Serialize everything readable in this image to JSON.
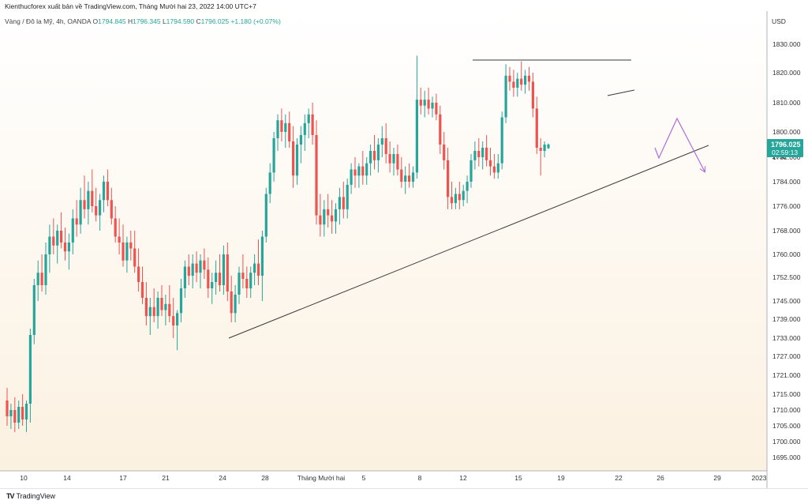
{
  "header": {
    "title": "Kienthucforex xuất bản về TradingView.com, Tháng Mười hai 23, 2022 14:00 UTC+7"
  },
  "symbol_info": {
    "name": "Vàng / Đô la Mỹ, 4h, OANDA",
    "o_label": "O",
    "o_value": "1794.845",
    "h_label": "H",
    "h_value": "1796.345",
    "l_label": "L",
    "l_value": "1794.590",
    "c_label": "C",
    "c_value": "1796.025",
    "change": "+1.180 (+0.07%)"
  },
  "price_axis": {
    "currency": "USD",
    "current_price": "1796.025",
    "countdown": "02:59:13",
    "partial_label": "1792"
  },
  "branding": {
    "logo_mark": "TV",
    "name": "TradingView"
  },
  "colors": {
    "up": "#26a69a",
    "down": "#ef5350",
    "projection": "#b06ad8",
    "trendline": "#3a3a3a",
    "price_tag": "#26a69a"
  },
  "chart_data": {
    "type": "candlestick",
    "interval": "4h",
    "y_ticks": [
      "1830.000",
      "1820.000",
      "1810.000",
      "1800.000",
      "1792.000",
      "1784.000",
      "1776.000",
      "1768.000",
      "1760.000",
      "1752.500",
      "1745.000",
      "1739.000",
      "1733.000",
      "1727.000",
      "1721.000",
      "1715.000",
      "1710.000",
      "1705.000",
      "1700.000",
      "1695.000"
    ],
    "x_ticks": [
      "10",
      "14",
      "17",
      "21",
      "24",
      "28",
      "Tháng Mười hai",
      "5",
      "8",
      "12",
      "15",
      "19",
      "22",
      "26",
      "29",
      "2023"
    ],
    "candles": [
      {
        "o": 1713,
        "h": 1717,
        "l": 1705,
        "c": 1708
      },
      {
        "o": 1708,
        "h": 1712,
        "l": 1704,
        "c": 1710
      },
      {
        "o": 1710,
        "h": 1714,
        "l": 1703,
        "c": 1706
      },
      {
        "o": 1706,
        "h": 1713,
        "l": 1704,
        "c": 1711
      },
      {
        "o": 1711,
        "h": 1715,
        "l": 1705,
        "c": 1707
      },
      {
        "o": 1707,
        "h": 1713,
        "l": 1703,
        "c": 1712
      },
      {
        "o": 1712,
        "h": 1736,
        "l": 1706,
        "c": 1734
      },
      {
        "o": 1734,
        "h": 1752,
        "l": 1731,
        "c": 1750
      },
      {
        "o": 1750,
        "h": 1758,
        "l": 1745,
        "c": 1754
      },
      {
        "o": 1754,
        "h": 1760,
        "l": 1748,
        "c": 1750
      },
      {
        "o": 1750,
        "h": 1764,
        "l": 1747,
        "c": 1760
      },
      {
        "o": 1760,
        "h": 1770,
        "l": 1754,
        "c": 1766
      },
      {
        "o": 1766,
        "h": 1772,
        "l": 1760,
        "c": 1763
      },
      {
        "o": 1763,
        "h": 1770,
        "l": 1757,
        "c": 1768
      },
      {
        "o": 1768,
        "h": 1774,
        "l": 1762,
        "c": 1764
      },
      {
        "o": 1764,
        "h": 1769,
        "l": 1758,
        "c": 1761
      },
      {
        "o": 1761,
        "h": 1767,
        "l": 1755,
        "c": 1764
      },
      {
        "o": 1764,
        "h": 1775,
        "l": 1760,
        "c": 1772
      },
      {
        "o": 1772,
        "h": 1778,
        "l": 1766,
        "c": 1770
      },
      {
        "o": 1770,
        "h": 1782,
        "l": 1767,
        "c": 1778
      },
      {
        "o": 1778,
        "h": 1786,
        "l": 1772,
        "c": 1775
      },
      {
        "o": 1775,
        "h": 1784,
        "l": 1770,
        "c": 1781
      },
      {
        "o": 1781,
        "h": 1788,
        "l": 1774,
        "c": 1776
      },
      {
        "o": 1776,
        "h": 1782,
        "l": 1771,
        "c": 1773
      },
      {
        "o": 1773,
        "h": 1780,
        "l": 1768,
        "c": 1778
      },
      {
        "o": 1778,
        "h": 1786,
        "l": 1774,
        "c": 1784
      },
      {
        "o": 1784,
        "h": 1788,
        "l": 1776,
        "c": 1778
      },
      {
        "o": 1778,
        "h": 1782,
        "l": 1770,
        "c": 1772
      },
      {
        "o": 1772,
        "h": 1776,
        "l": 1764,
        "c": 1766
      },
      {
        "o": 1766,
        "h": 1772,
        "l": 1760,
        "c": 1764
      },
      {
        "o": 1764,
        "h": 1770,
        "l": 1756,
        "c": 1758
      },
      {
        "o": 1758,
        "h": 1766,
        "l": 1754,
        "c": 1764
      },
      {
        "o": 1764,
        "h": 1768,
        "l": 1758,
        "c": 1762
      },
      {
        "o": 1762,
        "h": 1768,
        "l": 1754,
        "c": 1756
      },
      {
        "o": 1756,
        "h": 1762,
        "l": 1748,
        "c": 1751
      },
      {
        "o": 1751,
        "h": 1756,
        "l": 1744,
        "c": 1746
      },
      {
        "o": 1746,
        "h": 1751,
        "l": 1737,
        "c": 1740
      },
      {
        "o": 1740,
        "h": 1746,
        "l": 1734,
        "c": 1743
      },
      {
        "o": 1743,
        "h": 1749,
        "l": 1738,
        "c": 1740
      },
      {
        "o": 1740,
        "h": 1748,
        "l": 1736,
        "c": 1746
      },
      {
        "o": 1746,
        "h": 1750,
        "l": 1740,
        "c": 1742
      },
      {
        "o": 1742,
        "h": 1747,
        "l": 1737,
        "c": 1744
      },
      {
        "o": 1744,
        "h": 1750,
        "l": 1738,
        "c": 1740
      },
      {
        "o": 1740,
        "h": 1746,
        "l": 1733,
        "c": 1737
      },
      {
        "o": 1737,
        "h": 1742,
        "l": 1729,
        "c": 1741
      },
      {
        "o": 1741,
        "h": 1752,
        "l": 1738,
        "c": 1749
      },
      {
        "o": 1749,
        "h": 1758,
        "l": 1746,
        "c": 1756
      },
      {
        "o": 1756,
        "h": 1760,
        "l": 1750,
        "c": 1753
      },
      {
        "o": 1753,
        "h": 1760,
        "l": 1749,
        "c": 1757
      },
      {
        "o": 1757,
        "h": 1761,
        "l": 1751,
        "c": 1754
      },
      {
        "o": 1754,
        "h": 1760,
        "l": 1749,
        "c": 1758
      },
      {
        "o": 1758,
        "h": 1762,
        "l": 1752,
        "c": 1755
      },
      {
        "o": 1755,
        "h": 1759,
        "l": 1746,
        "c": 1749
      },
      {
        "o": 1749,
        "h": 1754,
        "l": 1744,
        "c": 1751
      },
      {
        "o": 1751,
        "h": 1758,
        "l": 1747,
        "c": 1754
      },
      {
        "o": 1754,
        "h": 1760,
        "l": 1748,
        "c": 1750
      },
      {
        "o": 1750,
        "h": 1763,
        "l": 1747,
        "c": 1760
      },
      {
        "o": 1760,
        "h": 1764,
        "l": 1745,
        "c": 1748
      },
      {
        "o": 1748,
        "h": 1753,
        "l": 1738,
        "c": 1741
      },
      {
        "o": 1741,
        "h": 1750,
        "l": 1738,
        "c": 1747
      },
      {
        "o": 1747,
        "h": 1756,
        "l": 1744,
        "c": 1754
      },
      {
        "o": 1754,
        "h": 1760,
        "l": 1749,
        "c": 1752
      },
      {
        "o": 1752,
        "h": 1756,
        "l": 1746,
        "c": 1749
      },
      {
        "o": 1749,
        "h": 1756,
        "l": 1746,
        "c": 1754
      },
      {
        "o": 1754,
        "h": 1760,
        "l": 1750,
        "c": 1757
      },
      {
        "o": 1757,
        "h": 1765,
        "l": 1750,
        "c": 1753
      },
      {
        "o": 1753,
        "h": 1768,
        "l": 1745,
        "c": 1766
      },
      {
        "o": 1766,
        "h": 1782,
        "l": 1764,
        "c": 1780
      },
      {
        "o": 1780,
        "h": 1790,
        "l": 1777,
        "c": 1787
      },
      {
        "o": 1787,
        "h": 1800,
        "l": 1784,
        "c": 1798
      },
      {
        "o": 1798,
        "h": 1806,
        "l": 1794,
        "c": 1804
      },
      {
        "o": 1804,
        "h": 1808,
        "l": 1797,
        "c": 1800
      },
      {
        "o": 1800,
        "h": 1806,
        "l": 1795,
        "c": 1803
      },
      {
        "o": 1803,
        "h": 1807,
        "l": 1795,
        "c": 1797
      },
      {
        "o": 1797,
        "h": 1802,
        "l": 1782,
        "c": 1786
      },
      {
        "o": 1786,
        "h": 1798,
        "l": 1783,
        "c": 1796
      },
      {
        "o": 1796,
        "h": 1802,
        "l": 1790,
        "c": 1799
      },
      {
        "o": 1799,
        "h": 1806,
        "l": 1794,
        "c": 1803
      },
      {
        "o": 1803,
        "h": 1808,
        "l": 1798,
        "c": 1806
      },
      {
        "o": 1806,
        "h": 1810,
        "l": 1796,
        "c": 1799
      },
      {
        "o": 1799,
        "h": 1804,
        "l": 1770,
        "c": 1773
      },
      {
        "o": 1773,
        "h": 1780,
        "l": 1766,
        "c": 1770
      },
      {
        "o": 1770,
        "h": 1778,
        "l": 1766,
        "c": 1775
      },
      {
        "o": 1775,
        "h": 1780,
        "l": 1769,
        "c": 1773
      },
      {
        "o": 1773,
        "h": 1778,
        "l": 1767,
        "c": 1771
      },
      {
        "o": 1771,
        "h": 1777,
        "l": 1767,
        "c": 1775
      },
      {
        "o": 1775,
        "h": 1782,
        "l": 1770,
        "c": 1779
      },
      {
        "o": 1779,
        "h": 1784,
        "l": 1772,
        "c": 1775
      },
      {
        "o": 1775,
        "h": 1785,
        "l": 1772,
        "c": 1783
      },
      {
        "o": 1783,
        "h": 1790,
        "l": 1780,
        "c": 1788
      },
      {
        "o": 1788,
        "h": 1792,
        "l": 1782,
        "c": 1786
      },
      {
        "o": 1786,
        "h": 1790,
        "l": 1782,
        "c": 1789
      },
      {
        "o": 1789,
        "h": 1794,
        "l": 1783,
        "c": 1786
      },
      {
        "o": 1786,
        "h": 1792,
        "l": 1783,
        "c": 1790
      },
      {
        "o": 1790,
        "h": 1796,
        "l": 1786,
        "c": 1794
      },
      {
        "o": 1794,
        "h": 1799,
        "l": 1788,
        "c": 1791
      },
      {
        "o": 1791,
        "h": 1798,
        "l": 1787,
        "c": 1796
      },
      {
        "o": 1796,
        "h": 1802,
        "l": 1792,
        "c": 1798
      },
      {
        "o": 1798,
        "h": 1803,
        "l": 1790,
        "c": 1793
      },
      {
        "o": 1793,
        "h": 1797,
        "l": 1787,
        "c": 1790
      },
      {
        "o": 1790,
        "h": 1795,
        "l": 1786,
        "c": 1793
      },
      {
        "o": 1793,
        "h": 1796,
        "l": 1786,
        "c": 1788
      },
      {
        "o": 1788,
        "h": 1792,
        "l": 1782,
        "c": 1784
      },
      {
        "o": 1784,
        "h": 1789,
        "l": 1780,
        "c": 1786
      },
      {
        "o": 1786,
        "h": 1790,
        "l": 1782,
        "c": 1784
      },
      {
        "o": 1784,
        "h": 1789,
        "l": 1782,
        "c": 1787
      },
      {
        "o": 1787,
        "h": 1826,
        "l": 1785,
        "c": 1811
      },
      {
        "o": 1811,
        "h": 1815,
        "l": 1806,
        "c": 1809
      },
      {
        "o": 1809,
        "h": 1814,
        "l": 1805,
        "c": 1811
      },
      {
        "o": 1811,
        "h": 1815,
        "l": 1806,
        "c": 1808
      },
      {
        "o": 1808,
        "h": 1812,
        "l": 1805,
        "c": 1810
      },
      {
        "o": 1810,
        "h": 1813,
        "l": 1804,
        "c": 1806
      },
      {
        "o": 1806,
        "h": 1809,
        "l": 1793,
        "c": 1796
      },
      {
        "o": 1796,
        "h": 1800,
        "l": 1788,
        "c": 1791
      },
      {
        "o": 1791,
        "h": 1795,
        "l": 1775,
        "c": 1779
      },
      {
        "o": 1779,
        "h": 1784,
        "l": 1775,
        "c": 1777
      },
      {
        "o": 1777,
        "h": 1782,
        "l": 1775,
        "c": 1780
      },
      {
        "o": 1780,
        "h": 1784,
        "l": 1775,
        "c": 1778
      },
      {
        "o": 1778,
        "h": 1783,
        "l": 1776,
        "c": 1781
      },
      {
        "o": 1781,
        "h": 1786,
        "l": 1777,
        "c": 1784
      },
      {
        "o": 1784,
        "h": 1793,
        "l": 1782,
        "c": 1791
      },
      {
        "o": 1791,
        "h": 1797,
        "l": 1788,
        "c": 1794
      },
      {
        "o": 1794,
        "h": 1798,
        "l": 1789,
        "c": 1792
      },
      {
        "o": 1792,
        "h": 1797,
        "l": 1788,
        "c": 1795
      },
      {
        "o": 1795,
        "h": 1799,
        "l": 1789,
        "c": 1791
      },
      {
        "o": 1791,
        "h": 1795,
        "l": 1786,
        "c": 1789
      },
      {
        "o": 1789,
        "h": 1793,
        "l": 1785,
        "c": 1787
      },
      {
        "o": 1787,
        "h": 1793,
        "l": 1785,
        "c": 1790
      },
      {
        "o": 1790,
        "h": 1807,
        "l": 1788,
        "c": 1805
      },
      {
        "o": 1805,
        "h": 1823,
        "l": 1803,
        "c": 1819
      },
      {
        "o": 1819,
        "h": 1822,
        "l": 1814,
        "c": 1817
      },
      {
        "o": 1817,
        "h": 1821,
        "l": 1812,
        "c": 1815
      },
      {
        "o": 1815,
        "h": 1820,
        "l": 1812,
        "c": 1818
      },
      {
        "o": 1818,
        "h": 1824,
        "l": 1814,
        "c": 1816
      },
      {
        "o": 1816,
        "h": 1821,
        "l": 1813,
        "c": 1819
      },
      {
        "o": 1819,
        "h": 1822,
        "l": 1814,
        "c": 1817
      },
      {
        "o": 1817,
        "h": 1820,
        "l": 1805,
        "c": 1808
      },
      {
        "o": 1808,
        "h": 1812,
        "l": 1793,
        "c": 1795
      },
      {
        "o": 1795,
        "h": 1798,
        "l": 1786,
        "c": 1794
      },
      {
        "o": 1794,
        "h": 1797,
        "l": 1792,
        "c": 1796
      },
      {
        "o": 1794.845,
        "h": 1796.345,
        "l": 1794.59,
        "c": 1796.025
      }
    ]
  }
}
